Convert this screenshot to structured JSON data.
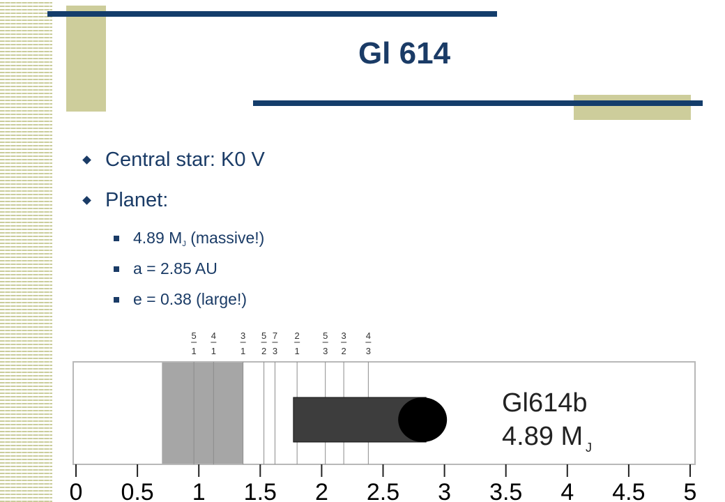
{
  "title": "Gl 614",
  "bullets": [
    {
      "text": "Central star: K0 V"
    },
    {
      "text": "Planet:"
    }
  ],
  "sub_bullets": [
    {
      "main": "4.89 M",
      "sub": "J",
      "rest": " (massive!)"
    },
    {
      "text": "a = 2.85 AU"
    },
    {
      "text": "e = 0.38 (large!)"
    }
  ],
  "diagram": {
    "axis_ticks": [
      "0",
      "0.5",
      "1",
      "1.5",
      "2",
      "2.5",
      "3",
      "3.5",
      "4",
      "4.5",
      "5"
    ],
    "axis_range": [
      0,
      5
    ],
    "shaded_region": [
      0.7,
      1.36
    ],
    "resonances": [
      {
        "num": "5",
        "den": "1",
        "x": 0.96
      },
      {
        "num": "4",
        "den": "1",
        "x": 1.12
      },
      {
        "num": "3",
        "den": "1",
        "x": 1.36
      },
      {
        "num": "5",
        "den": "2",
        "x": 1.53
      },
      {
        "num": "7",
        "den": "3",
        "x": 1.62
      },
      {
        "num": "2",
        "den": "1",
        "x": 1.8
      },
      {
        "num": "5",
        "den": "3",
        "x": 2.03
      },
      {
        "num": "3",
        "den": "2",
        "x": 2.18
      },
      {
        "num": "4",
        "den": "3",
        "x": 2.38
      }
    ],
    "planet": {
      "name": "Gl614b",
      "mass_value": "4.89 M",
      "mass_sub": "J",
      "a": 2.85,
      "periastron": 1.77
    }
  },
  "colors": {
    "navy": "#143d6b",
    "accent": "#cdcd9b"
  }
}
